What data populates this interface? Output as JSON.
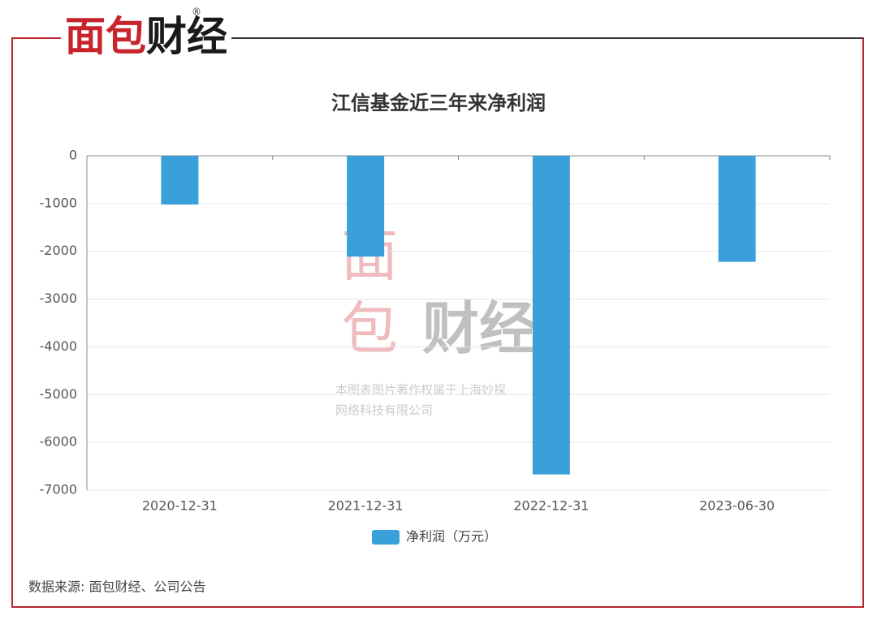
{
  "logo": [
    "面包",
    "财经"
  ],
  "watermark": {
    "logo": [
      "面",
      "包",
      "财经"
    ],
    "lines": [
      "本图表图片著作权属于上海妙探",
      "网络科技有限公司"
    ]
  },
  "source": "数据来源: 面包财经、公司公告",
  "chart_data": {
    "type": "bar",
    "title": "江信基金近三年来净利润",
    "categories": [
      "2020-12-31",
      "2021-12-31",
      "2022-12-31",
      "2023-06-30"
    ],
    "series": [
      {
        "name": "净利润（万元）",
        "color": "#3aa0da",
        "values": [
          -1020,
          -2110,
          -6670,
          -2220
        ]
      }
    ],
    "ylim": [
      -7000,
      0
    ],
    "yticks": [
      0,
      -1000,
      -2000,
      -3000,
      -4000,
      -5000,
      -6000,
      -7000
    ],
    "grid": true,
    "legend": "bottom"
  }
}
